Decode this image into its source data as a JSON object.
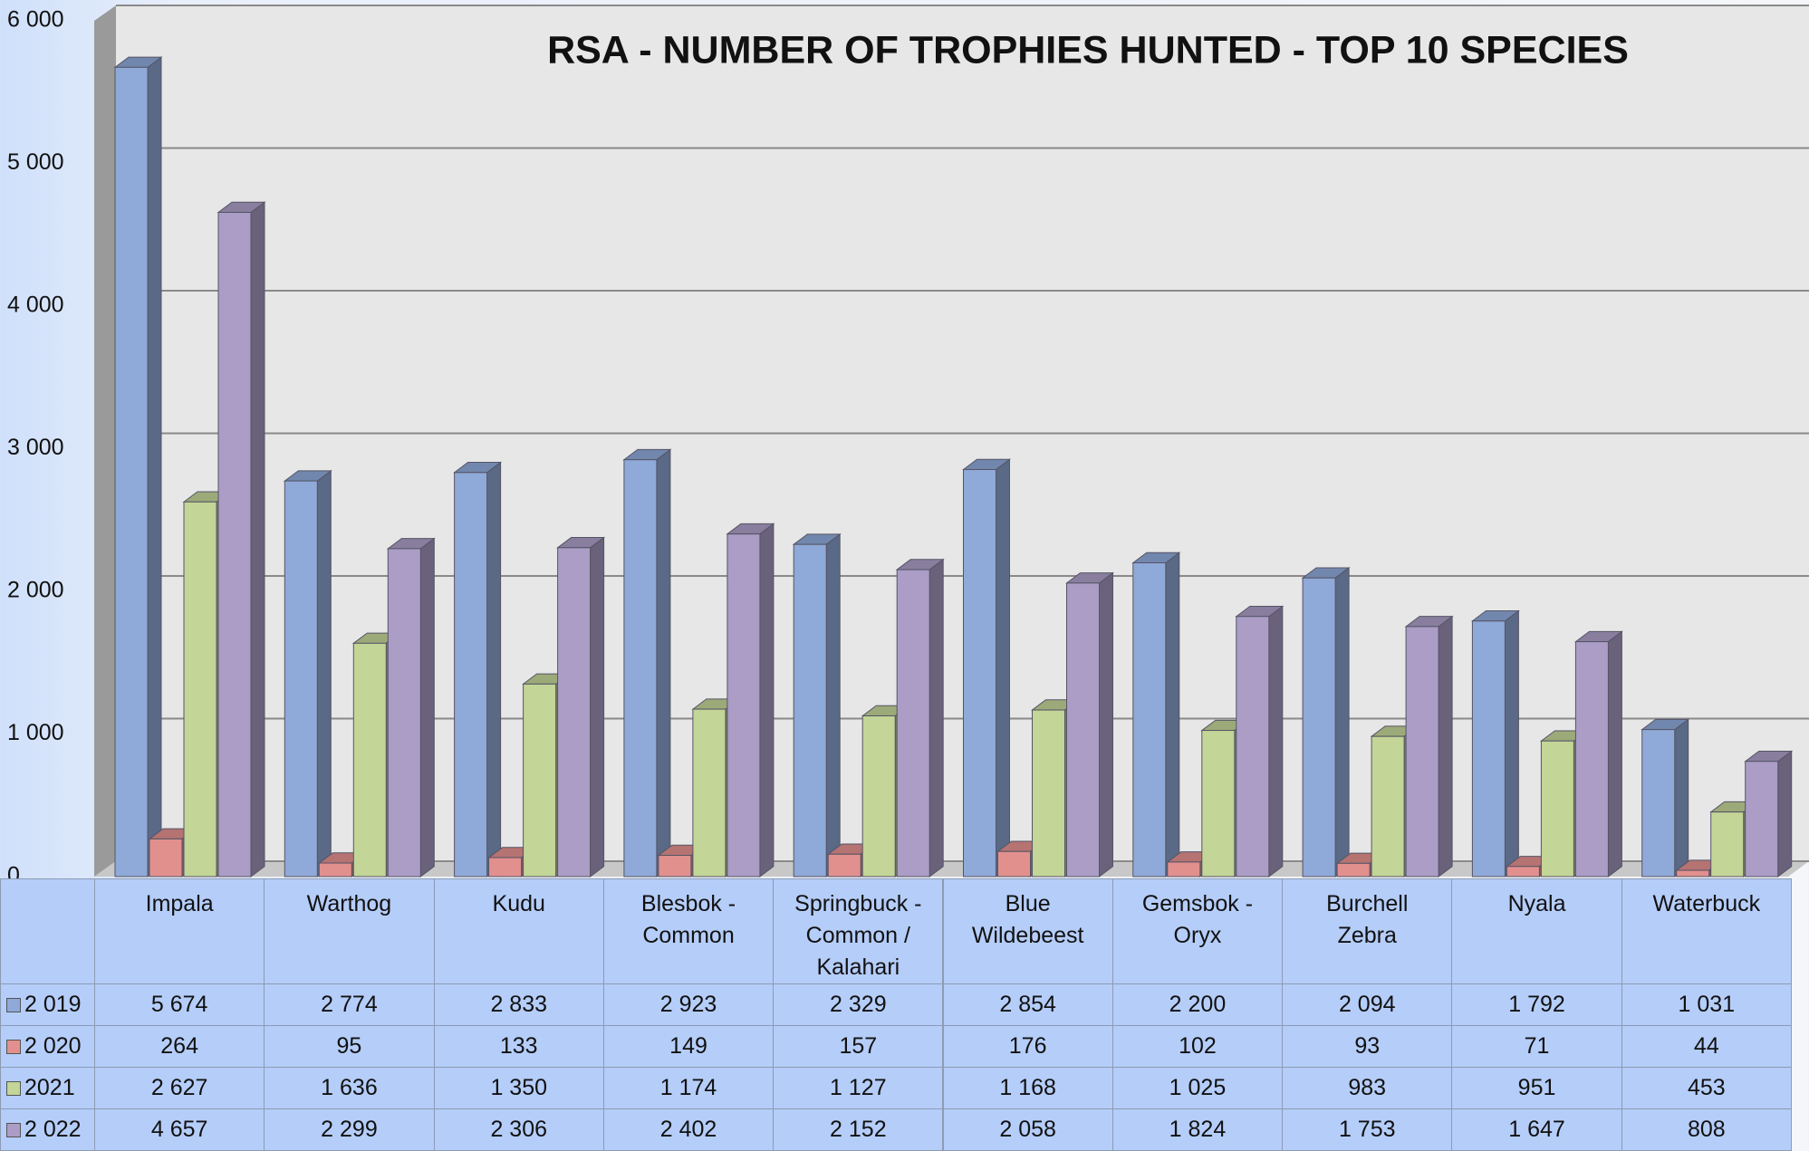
{
  "chart_data": {
    "type": "bar3d",
    "title": "RSA - NUMBER OF TROPHIES HUNTED - TOP 10 SPECIES",
    "categories": [
      "Impala",
      "Warthog",
      "Kudu",
      "Blesbok - Common",
      "Springbuck - Common / Kalahari",
      "Blue Wildebeest",
      "Gemsbok - Oryx",
      "Burchell Zebra",
      "Nyala",
      "Waterbuck"
    ],
    "series": [
      {
        "name": "2 019",
        "color": "#8fa9d8",
        "values": [
          5674,
          2774,
          2833,
          2923,
          2329,
          2854,
          2200,
          2094,
          1792,
          1031
        ],
        "value_labels": [
          "5 674",
          "2 774",
          "2 833",
          "2 923",
          "2 329",
          "2 854",
          "2 200",
          "2 094",
          "1 792",
          "1 031"
        ]
      },
      {
        "name": "2 020",
        "color": "#e2908e",
        "values": [
          264,
          95,
          133,
          149,
          157,
          176,
          102,
          93,
          71,
          44
        ],
        "value_labels": [
          "264",
          "95",
          "133",
          "149",
          "157",
          "176",
          "102",
          "93",
          "71",
          "44"
        ]
      },
      {
        "name": "2021",
        "color": "#c3d597",
        "values": [
          2627,
          1636,
          1350,
          1174,
          1127,
          1168,
          1025,
          983,
          951,
          453
        ],
        "value_labels": [
          "2 627",
          "1 636",
          "1 350",
          "1 174",
          "1 127",
          "1 168",
          "1 025",
          "983",
          "951",
          "453"
        ]
      },
      {
        "name": "2 022",
        "color": "#ab9dc6",
        "values": [
          4657,
          2299,
          2306,
          2402,
          2152,
          2058,
          1824,
          1753,
          1647,
          808
        ],
        "value_labels": [
          "4 657",
          "2 299",
          "2 306",
          "2 402",
          "2 152",
          "2 058",
          "1 824",
          "1 753",
          "1 647",
          "808"
        ]
      }
    ],
    "ylim": [
      0,
      6000
    ],
    "yticks": [
      0,
      {
        "value": 1000,
        "label": "1 000"
      },
      {
        "value": 2000,
        "label": "2 000"
      },
      {
        "value": 3000,
        "label": "3 000"
      },
      {
        "value": 4000,
        "label": "4 000"
      },
      {
        "value": 5000,
        "label": "5 000"
      },
      {
        "value": 6000,
        "label": "6 000"
      }
    ],
    "grid": true
  }
}
